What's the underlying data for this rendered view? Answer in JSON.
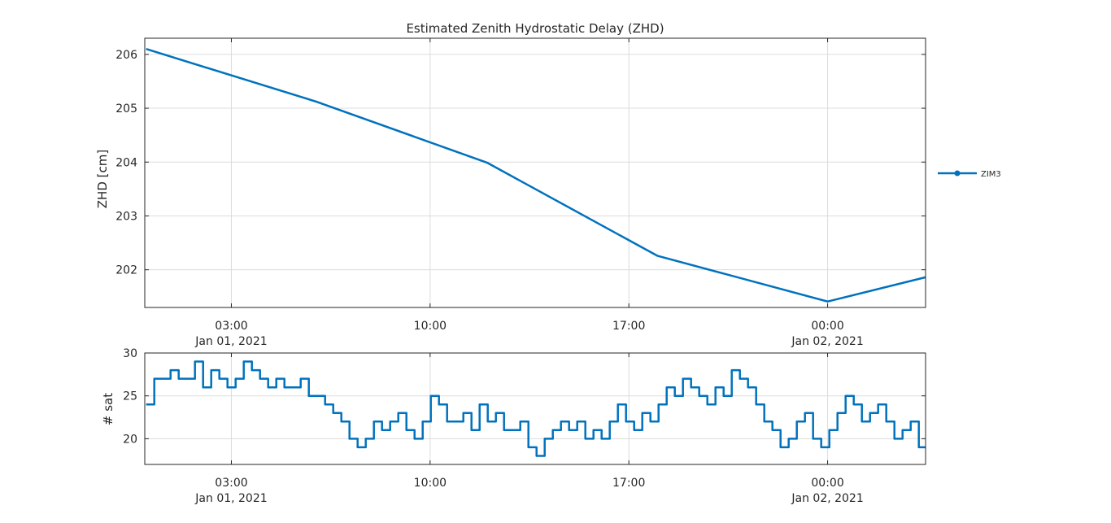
{
  "colors": {
    "series": "#0072bd",
    "axes": "#262626",
    "grid": "#dcdcdc"
  },
  "chart_data": [
    {
      "type": "line",
      "title": "Estimated Zenith Hydrostatic Delay (ZHD)",
      "xlabel": "",
      "ylabel": "ZHD [cm]",
      "x_tick_labels": [
        [
          "03:00",
          "Jan 01, 2021"
        ],
        [
          "10:00",
          ""
        ],
        [
          "17:00",
          ""
        ],
        [
          "00:00",
          "Jan 02, 2021"
        ]
      ],
      "x_ticks_hours": [
        3,
        10,
        17,
        24
      ],
      "xlim_hours": [
        -0.05,
        27.45
      ],
      "y_ticks": [
        202,
        203,
        204,
        205,
        206
      ],
      "ylim": [
        201.3,
        206.3
      ],
      "grid": true,
      "legend_position": "right",
      "series": [
        {
          "name": "ZIM3",
          "x_hours": [
            0,
            6,
            12,
            18,
            24,
            27.45
          ],
          "y": [
            206.1,
            205.12,
            203.99,
            202.26,
            201.41,
            201.86
          ]
        }
      ]
    },
    {
      "type": "line",
      "title": "",
      "xlabel": "",
      "ylabel": "# sat",
      "x_tick_labels": [
        [
          "03:00",
          "Jan 01, 2021"
        ],
        [
          "10:00",
          ""
        ],
        [
          "17:00",
          ""
        ],
        [
          "00:00",
          "Jan 02, 2021"
        ]
      ],
      "x_ticks_hours": [
        3,
        10,
        17,
        24
      ],
      "xlim_hours": [
        -0.05,
        27.45
      ],
      "y_ticks": [
        20,
        25,
        30
      ],
      "ylim": [
        17,
        30
      ],
      "grid": true,
      "step": true,
      "series": [
        {
          "name": "ZIM3",
          "x_hours": [
            0,
            0.05,
            0.5,
            0.45,
            0.5,
            0.95,
            0.5,
            1.0,
            1.8,
            1.0,
            1.9,
            1.0,
            2.0,
            2.5,
            1.6,
            2.0,
            3.0,
            2.4,
            2.5,
            3.6,
            2.5,
            2.6,
            4.0,
            2.5,
            2.55,
            3.1,
            4.0,
            3.2,
            3.7,
            4.7,
            3.8,
            4.2,
            5.0,
            4.1,
            4.3,
            5.8,
            4.5,
            6.2,
            4.4,
            6.8,
            6.2,
            7.4,
            6.3,
            7.9,
            6.6,
            9.1,
            6.8,
            9.2,
            8.0,
            10.0,
            8.2,
            10.3,
            9.2,
            10.5,
            9.3,
            11.6,
            9.5,
            12.0,
            11.8,
            12.7,
            11.9,
            13.5,
            12.7,
            14.5,
            12.8,
            15.2,
            13.0,
            16.4,
            13.5,
            17.5,
            16.6,
            18.1,
            16.8,
            18.6,
            17.0,
            19.3,
            17.5,
            20.3,
            17.9,
            21.3,
            19.8,
            22.6,
            20.2,
            23.2,
            20.3,
            24.8,
            20.5,
            25.1,
            20.6,
            25.6,
            21.2,
            26.6,
            21.3,
            27.0,
            21.8,
            27.4
          ],
          "y": [
            24,
            27,
            27,
            28,
            27,
            27,
            29,
            26,
            28,
            27,
            26,
            27,
            29,
            28,
            27,
            26,
            27,
            26,
            26,
            27,
            25,
            25,
            24,
            23,
            22,
            20,
            19,
            20,
            22,
            21,
            22,
            23,
            21,
            20,
            22,
            25,
            24,
            22,
            22,
            23,
            21,
            24,
            22,
            23,
            21,
            21,
            22,
            19,
            18,
            20,
            21,
            22,
            21,
            22,
            20,
            21,
            20,
            22,
            24,
            22,
            21,
            23,
            22,
            24,
            26,
            25,
            27,
            26,
            25,
            24,
            26,
            25,
            28,
            27,
            26,
            24,
            22,
            21,
            19,
            20,
            22,
            23,
            20,
            19,
            21,
            23,
            25,
            24,
            22,
            23,
            24,
            22,
            20,
            21,
            22,
            19
          ]
        }
      ]
    }
  ]
}
